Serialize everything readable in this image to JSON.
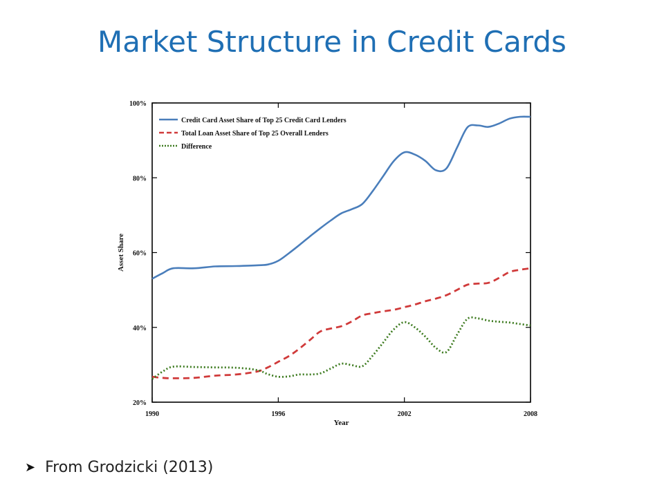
{
  "slide": {
    "title": "Market Structure in Credit Cards",
    "bullet_icon": "arrow-bullet-icon",
    "bullet_text": "From Grodzicki (2013)"
  },
  "chart_data": {
    "type": "line",
    "title": "",
    "xlabel": "Year",
    "ylabel": "Asset Share",
    "xlim": [
      1990,
      2008
    ],
    "ylim": [
      20,
      100
    ],
    "x_ticks": [
      1990,
      1996,
      2002,
      2008
    ],
    "y_ticks": [
      20,
      40,
      60,
      80,
      100
    ],
    "y_tick_labels": [
      "20%",
      "40%",
      "60%",
      "80%",
      "100%"
    ],
    "legend_position": "top-left",
    "grid": false,
    "x": [
      1990,
      1990.5,
      1991,
      1992,
      1993,
      1994,
      1995,
      1995.5,
      1996,
      1996.5,
      1997,
      1997.5,
      1998,
      1998.5,
      1999,
      1999.5,
      2000,
      2000.5,
      2001,
      2001.5,
      2002,
      2002.5,
      2003,
      2003.5,
      2004,
      2004.5,
      2005,
      2005.5,
      2006,
      2006.5,
      2007,
      2007.5,
      2008
    ],
    "series": [
      {
        "name": "Credit Card Asset Share of Top 25 Credit Card Lenders",
        "color": "#4a7ebb",
        "style": "solid",
        "values": [
          53,
          54.5,
          55.8,
          55.8,
          56.3,
          56.4,
          56.6,
          56.8,
          57.8,
          59.8,
          62,
          64.3,
          66.5,
          68.6,
          70.5,
          71.6,
          73,
          76.5,
          80.5,
          84.5,
          86.8,
          86.2,
          84.5,
          82,
          82.5,
          88,
          93.5,
          94,
          93.6,
          94.5,
          95.8,
          96.3,
          96.3
        ]
      },
      {
        "name": "Total Loan Asset Share of Top 25 Overall Lenders",
        "color": "#d03a3a",
        "style": "dashed",
        "values": [
          26.8,
          26.5,
          26.4,
          26.5,
          27.1,
          27.4,
          28.2,
          29.3,
          30.8,
          32.3,
          34.3,
          36.6,
          38.9,
          39.7,
          40.3,
          41.6,
          43.2,
          43.8,
          44.3,
          44.7,
          45.4,
          46.1,
          47,
          47.7,
          48.6,
          50,
          51.4,
          51.7,
          51.9,
          53.2,
          54.8,
          55.4,
          55.8
        ]
      },
      {
        "name": "Difference",
        "color": "#3c7a1e",
        "style": "dotted",
        "values": [
          26.2,
          28.2,
          29.5,
          29.4,
          29.3,
          29.2,
          28.6,
          27.5,
          26.8,
          26.9,
          27.4,
          27.4,
          27.7,
          29,
          30.3,
          29.9,
          29.6,
          32.5,
          36,
          39.5,
          41.4,
          40,
          37.5,
          34.5,
          33.4,
          38,
          42.3,
          42.4,
          41.8,
          41.5,
          41.3,
          40.9,
          40.5
        ]
      }
    ]
  }
}
